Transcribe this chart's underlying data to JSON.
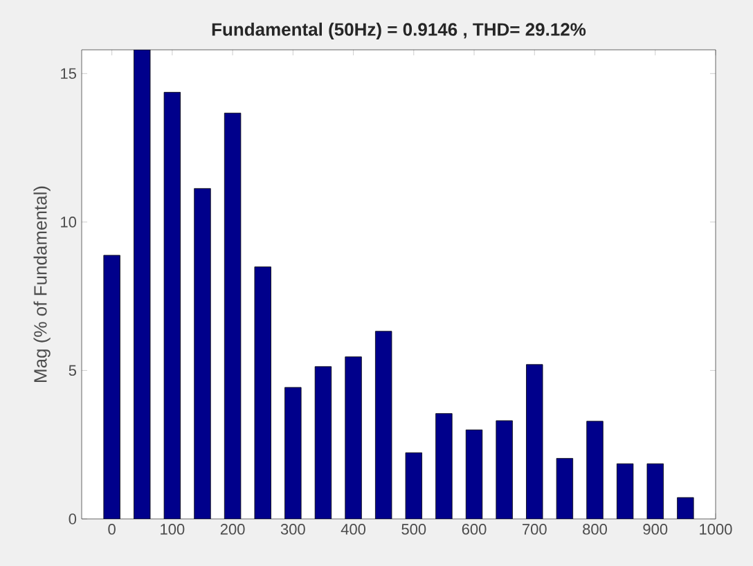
{
  "chart_data": {
    "type": "bar",
    "title": "Fundamental (50Hz) = 0.9146 , THD= 29.12%",
    "ylabel": "Mag (% of Fundamental)",
    "x": [
      0,
      50,
      100,
      150,
      200,
      250,
      300,
      350,
      400,
      450,
      500,
      550,
      600,
      650,
      700,
      750,
      800,
      850,
      900,
      950
    ],
    "values": [
      8.88,
      15.8,
      14.37,
      11.13,
      13.67,
      8.49,
      4.43,
      5.13,
      5.46,
      6.32,
      2.23,
      3.55,
      3.0,
      3.31,
      5.2,
      2.04,
      3.29,
      1.86,
      1.86,
      0.72
    ],
    "color": "#00008b",
    "xlim": [
      -50,
      1000
    ],
    "ylim": [
      0,
      15.8
    ],
    "xticks": [
      0,
      100,
      200,
      300,
      400,
      500,
      600,
      700,
      800,
      900,
      1000
    ],
    "yticks": [
      0,
      5,
      10,
      15
    ]
  }
}
